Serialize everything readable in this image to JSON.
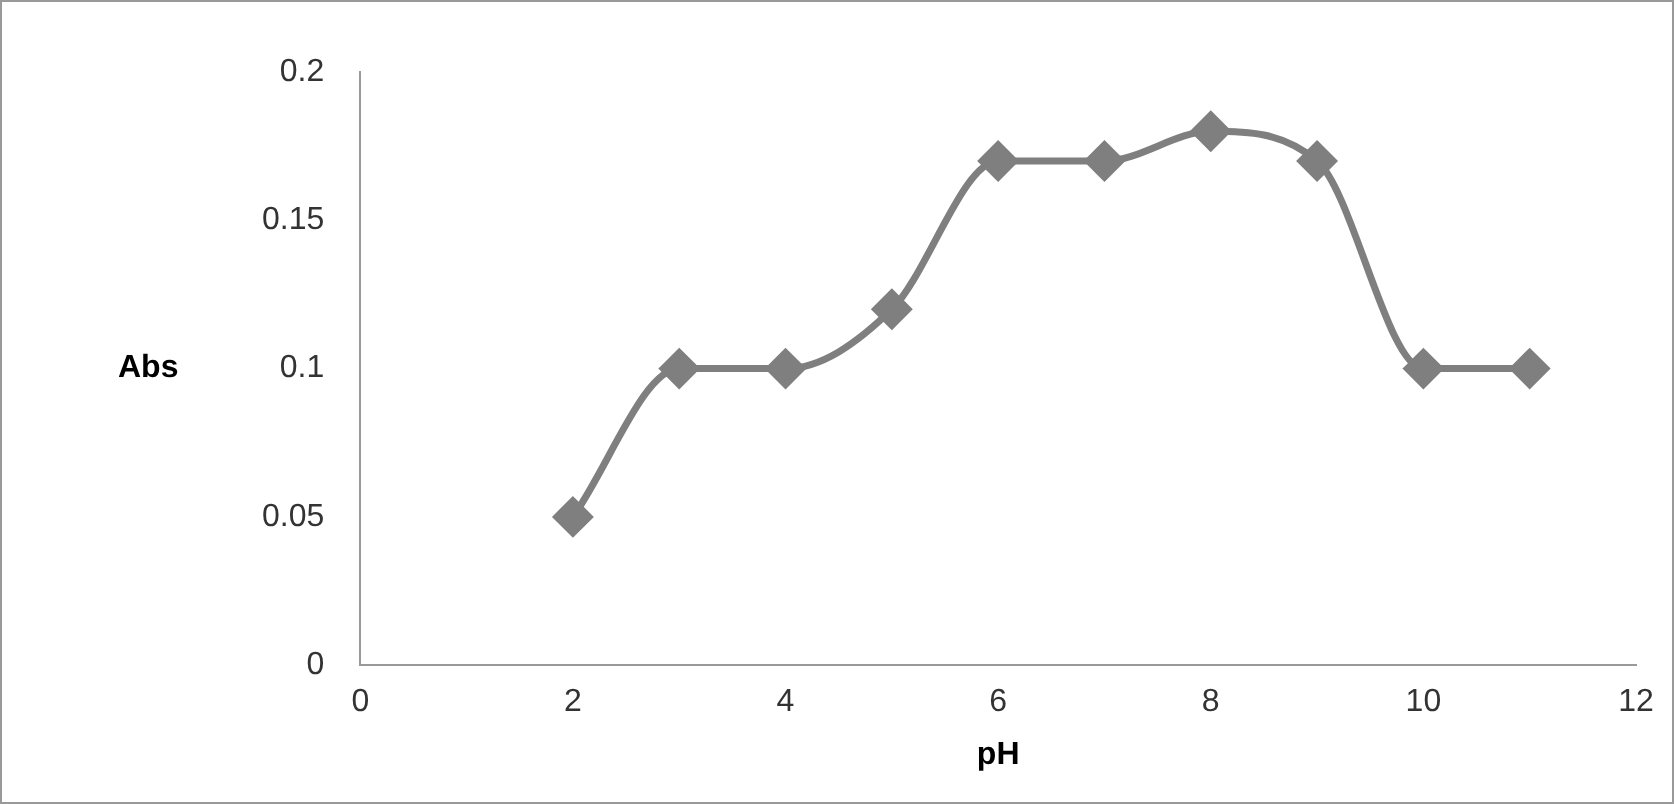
{
  "chart_data": {
    "type": "line",
    "xlabel": "pH",
    "ylabel": "Abs",
    "x": [
      2,
      3,
      4,
      5,
      6,
      7,
      8,
      9,
      10,
      11
    ],
    "series": [
      {
        "color": "#7f7f7f",
        "values": [
          0.05,
          0.1,
          0.1,
          0.12,
          0.17,
          0.17,
          0.18,
          0.17,
          0.1,
          0.1
        ]
      }
    ],
    "xlim": [
      0,
      12
    ],
    "xticks": [
      0,
      2,
      4,
      6,
      8,
      10,
      12
    ],
    "ylim": [
      0,
      0.2
    ],
    "yticks": [
      0,
      0.05,
      0.1,
      0.15,
      0.2
    ],
    "grid": false,
    "legend": false,
    "marker": "diamond",
    "line_style": "solid"
  }
}
